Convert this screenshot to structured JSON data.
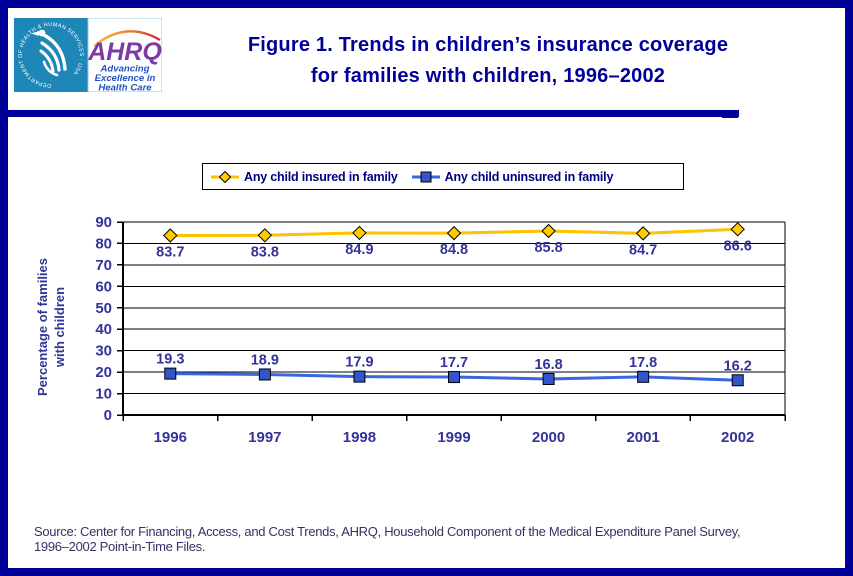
{
  "page": {
    "title_line1": "Figure 1. Trends in children’s insurance coverage",
    "title_line2": "for families with children, 1996–2002",
    "source_line1": "Source: Center for Financing, Access, and Cost Trends, AHRQ, Household Component of the Medical Expenditure Panel Survey,",
    "source_line2": "1996–2002 Point-in-Time Files."
  },
  "logo": {
    "org_abbr": "AHRQ",
    "tagline_line1": "Advancing",
    "tagline_line2": "Excellence in",
    "tagline_line3": "Health Care",
    "seal_text": "DEPARTMENT OF HEALTH & HUMAN SERVICES · USA"
  },
  "colors": {
    "frame_navy": "#000099",
    "axis_text": "#333399",
    "legend_text": "#000080",
    "seal_blue": "#1E87B8",
    "ahrq_purple": "#7A3BA8",
    "tagline_blue": "#2052C4"
  },
  "chart_data": {
    "type": "line",
    "title": "",
    "categories": [
      "1996",
      "1997",
      "1998",
      "1999",
      "2000",
      "2001",
      "2002"
    ],
    "series": [
      {
        "name": "Any child insured in family",
        "values": [
          83.7,
          83.8,
          84.9,
          84.8,
          85.8,
          84.7,
          86.6
        ],
        "line_color": "#FFC200",
        "marker": "diamond",
        "marker_color": "#FFCC00",
        "label_position": "below"
      },
      {
        "name": "Any child uninsured in family",
        "values": [
          19.3,
          18.9,
          17.9,
          17.7,
          16.8,
          17.8,
          16.2
        ],
        "line_color": "#3A66E0",
        "marker": "square",
        "marker_color": "#3355CC",
        "label_position": "above"
      }
    ],
    "xlabel": "",
    "ylabel_line1": "Percentage of families",
    "ylabel_line2": "with children",
    "ylim": [
      0,
      90
    ],
    "ytick_step": 10,
    "grid": true,
    "legend_position": "top"
  }
}
